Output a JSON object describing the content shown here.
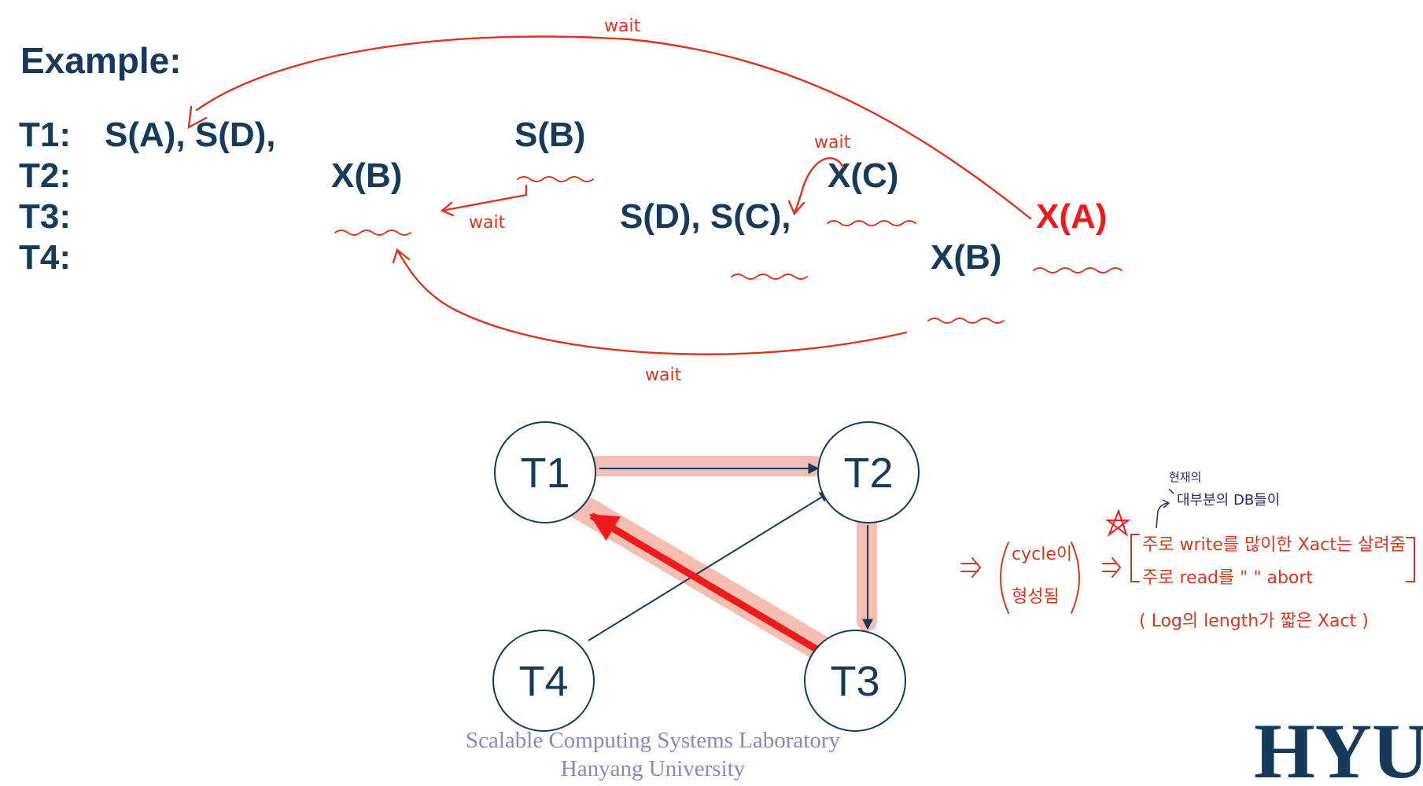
{
  "title": "Example:",
  "rows": [
    {
      "label": "T1:"
    },
    {
      "label": "T2:"
    },
    {
      "label": "T3:"
    },
    {
      "label": "T4:"
    }
  ],
  "ops": {
    "t1_first": "S(A), S(D),",
    "t1_sb": "S(B)",
    "t2_xb": "X(B)",
    "t2_xc": "X(C)",
    "t3_sd_sc": "S(D), S(C),",
    "t3_xa": "X(A)",
    "t4_xb": "X(B)"
  },
  "annotations": {
    "wait": "wait"
  },
  "graph": {
    "nodes": [
      "T1",
      "T2",
      "T3",
      "T4"
    ],
    "edges": [
      [
        "T1",
        "T2"
      ],
      [
        "T2",
        "T3"
      ],
      [
        "T3",
        "T1"
      ],
      [
        "T4",
        "T2"
      ]
    ]
  },
  "notes": {
    "line_current": "현재의",
    "line_db": "대부분의 DB들이",
    "line_write": "주로 write를 많이한 Xact는 살려줌",
    "line_read": "주로 read를 \" \" abort",
    "line_log": "( Log의 length가 짧은 Xact )",
    "cycle_a": "cycle이",
    "cycle_b": "형성됨"
  },
  "footer": {
    "line1": "Scalable Computing Systems Laboratory",
    "line2": "Hanyang University"
  },
  "logo": "HYU",
  "colors": {
    "navy": "#163a5a",
    "red": "#ec1c1c",
    "ink": "#d8371f",
    "highlight": "#f6b2a6",
    "footer": "#8a86b8"
  }
}
